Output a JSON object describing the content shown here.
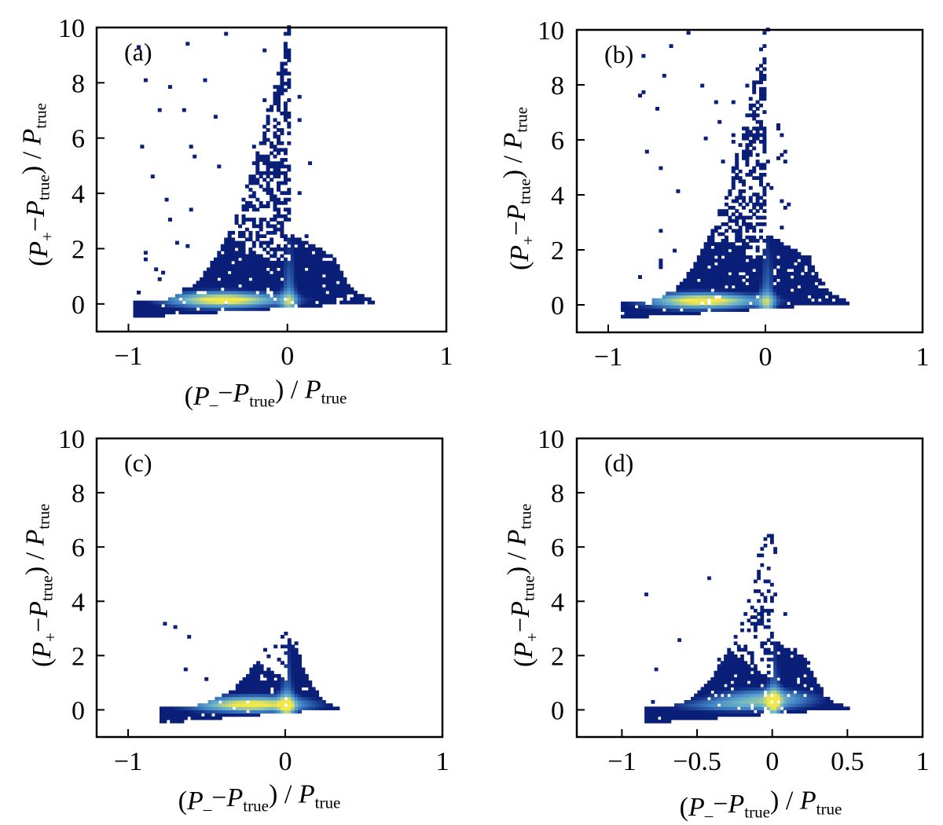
{
  "chart_data": [
    {
      "type": "heatmap",
      "panel_label": "(a)",
      "xlim": [
        -1.2,
        1.0
      ],
      "ylim": [
        -1.0,
        10.0
      ],
      "xticks": [
        -1,
        0,
        1
      ],
      "xtick_labels": [
        "−1",
        "0",
        "1"
      ],
      "yticks": [
        0,
        2,
        4,
        6,
        8,
        10
      ],
      "ytick_labels": [
        "0",
        "2",
        "4",
        "6",
        "8",
        "10"
      ],
      "xlabel": {
        "shown": true
      },
      "ylabel": {
        "shown": true
      },
      "density_shape": {
        "x_min": -0.97,
        "x_max": 0.75,
        "y_max": 10.0,
        "x_spread_top": 0.9,
        "scatter": 1.0
      },
      "peak": {
        "x": -0.45,
        "y": 0.1
      }
    },
    {
      "type": "heatmap",
      "panel_label": "(b)",
      "xlim": [
        -1.2,
        1.0
      ],
      "ylim": [
        -1.0,
        10.0
      ],
      "xticks": [
        -1,
        0,
        1
      ],
      "xtick_labels": [
        "−1",
        "0",
        "1"
      ],
      "yticks": [
        0,
        2,
        4,
        6,
        8,
        10
      ],
      "ytick_labels": [
        "0",
        "2",
        "4",
        "6",
        "8",
        "10"
      ],
      "xlabel": {
        "shown": false
      },
      "ylabel": {
        "shown": true
      },
      "density_shape": {
        "x_min": -0.92,
        "x_max": 0.72,
        "y_max": 10.0,
        "x_spread_top": 0.85,
        "scatter": 1.0
      },
      "peak": {
        "x": -0.45,
        "y": 0.1
      }
    },
    {
      "type": "heatmap",
      "panel_label": "(c)",
      "xlim": [
        -1.2,
        1.0
      ],
      "ylim": [
        -1.0,
        10.0
      ],
      "xticks": [
        -1,
        0,
        1
      ],
      "xtick_labels": [
        "−1",
        "0",
        "1"
      ],
      "yticks": [
        0,
        2,
        4,
        6,
        8,
        10
      ],
      "ytick_labels": [
        "0",
        "2",
        "4",
        "6",
        "8",
        "10"
      ],
      "xlabel": {
        "shown": true
      },
      "ylabel": {
        "shown": true
      },
      "density_shape": {
        "x_min": -0.8,
        "x_max": 0.5,
        "y_max": 3.5,
        "x_spread_top": 0.55,
        "scatter": 0.35
      },
      "peak": {
        "x": -0.2,
        "y": 0.2
      }
    },
    {
      "type": "heatmap",
      "panel_label": "(d)",
      "xlim": [
        -1.3,
        1.0
      ],
      "ylim": [
        -1.0,
        10.0
      ],
      "xticks": [
        -1,
        -0.5,
        0,
        0.5,
        1
      ],
      "xtick_labels": [
        "−1",
        "−0.5",
        "0",
        "0.5",
        "1"
      ],
      "yticks": [
        0,
        2,
        4,
        6,
        8,
        10
      ],
      "ytick_labels": [
        "0",
        "2",
        "4",
        "6",
        "8",
        "10"
      ],
      "xlabel": {
        "shown": true
      },
      "ylabel": {
        "shown": true
      },
      "density_shape": {
        "x_min": -0.85,
        "x_max": 0.7,
        "y_max": 7.3,
        "x_spread_top": 0.7,
        "scatter": 0.55
      },
      "peak": {
        "x": -0.05,
        "y": 0.4
      }
    }
  ],
  "label_text": {
    "P": "P",
    "plus": "+",
    "minus": "−",
    "sub_minus": "–",
    "true": "true",
    "open": "(",
    "close": ")",
    "slash": " / "
  },
  "colors": {
    "low": "#0a1f78",
    "mid": "#3f7fc4",
    "mid2": "#6fb7c8",
    "high": "#f2e84a",
    "axis": "#000000"
  }
}
